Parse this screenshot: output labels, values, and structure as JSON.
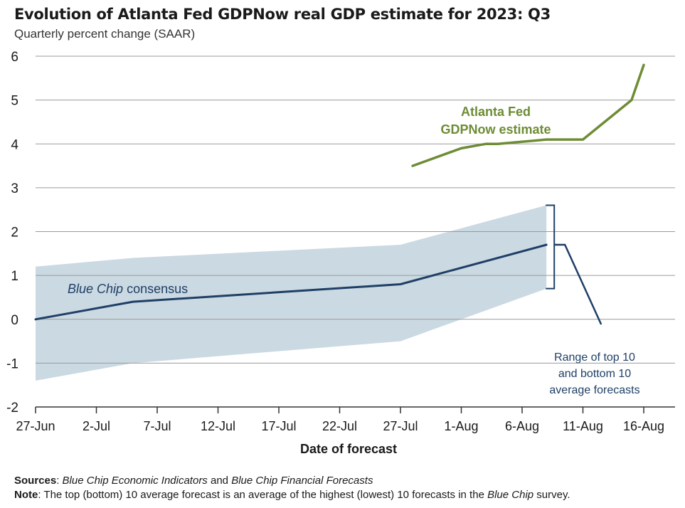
{
  "title": "Evolution of Atlanta Fed GDPNow real GDP estimate for 2023: Q3",
  "subtitle": "Quarterly percent change (SAAR)",
  "footer": {
    "sources_label": "Sources",
    "sources_part1": "Blue Chip Economic Indicators",
    "sources_and": " and ",
    "sources_part2": "Blue Chip Financial Forecasts",
    "note_label": "Note",
    "note_text_1": ": The top (bottom) 10 average forecast is an average of the highest (lowest) 10 forecasts in the ",
    "note_italic": "Blue Chip",
    "note_text_2": " survey."
  },
  "chart_data": {
    "type": "line",
    "title": "Evolution of Atlanta Fed GDPNow real GDP estimate for 2023: Q3",
    "subtitle": "Quarterly percent change (SAAR)",
    "xlabel": "Date of forecast",
    "ylabel": "",
    "ylim": [
      -2,
      6
    ],
    "yticks": [
      -2,
      -1,
      0,
      1,
      2,
      3,
      4,
      5,
      6
    ],
    "xlim": [
      "2023-06-27",
      "2023-08-16"
    ],
    "xticks": [
      "2023-06-27",
      "2023-07-02",
      "2023-07-07",
      "2023-07-12",
      "2023-07-17",
      "2023-07-22",
      "2023-07-27",
      "2023-08-01",
      "2023-08-06",
      "2023-08-11",
      "2023-08-16"
    ],
    "xtick_labels": [
      "27-Jun",
      "2-Jul",
      "7-Jul",
      "12-Jul",
      "17-Jul",
      "22-Jul",
      "27-Jul",
      "1-Aug",
      "6-Aug",
      "11-Aug",
      "16-Aug"
    ],
    "grid": "horizontal",
    "series": [
      {
        "name": "Atlanta Fed GDPNow estimate",
        "label_lines": [
          "Atlanta Fed",
          "GDPNow estimate"
        ],
        "color": "#6e8c35",
        "points": [
          {
            "x": "2023-07-28",
            "y": 3.5
          },
          {
            "x": "2023-08-01",
            "y": 3.9
          },
          {
            "x": "2023-08-03",
            "y": 4.0
          },
          {
            "x": "2023-08-04",
            "y": 4.0
          },
          {
            "x": "2023-08-08",
            "y": 4.1
          },
          {
            "x": "2023-08-10",
            "y": 4.1
          },
          {
            "x": "2023-08-11",
            "y": 4.1
          },
          {
            "x": "2023-08-15",
            "y": 5.0
          },
          {
            "x": "2023-08-16",
            "y": 5.8
          }
        ]
      },
      {
        "name": "Blue Chip consensus",
        "color": "#1f3f66",
        "points": [
          {
            "x": "2023-06-27",
            "y": 0.0
          },
          {
            "x": "2023-07-05",
            "y": 0.4
          },
          {
            "x": "2023-07-27",
            "y": 0.8
          },
          {
            "x": "2023-08-08",
            "y": 1.7
          }
        ]
      }
    ],
    "band": {
      "name": "Range of top 10 and bottom 10 average forecasts",
      "label_lines": [
        "Range of top 10",
        "and bottom 10",
        "average forecasts"
      ],
      "color": "#cbd9e2",
      "points": [
        {
          "x": "2023-06-27",
          "low": -1.4,
          "high": 1.2
        },
        {
          "x": "2023-07-05",
          "low": -1.0,
          "high": 1.4
        },
        {
          "x": "2023-07-27",
          "low": -0.5,
          "high": 1.7
        },
        {
          "x": "2023-08-08",
          "low": 0.7,
          "high": 2.6
        }
      ]
    },
    "colors": {
      "grid": "#9a9a9a",
      "axis": "#333333",
      "annotation_band": "#1f3f66"
    }
  }
}
